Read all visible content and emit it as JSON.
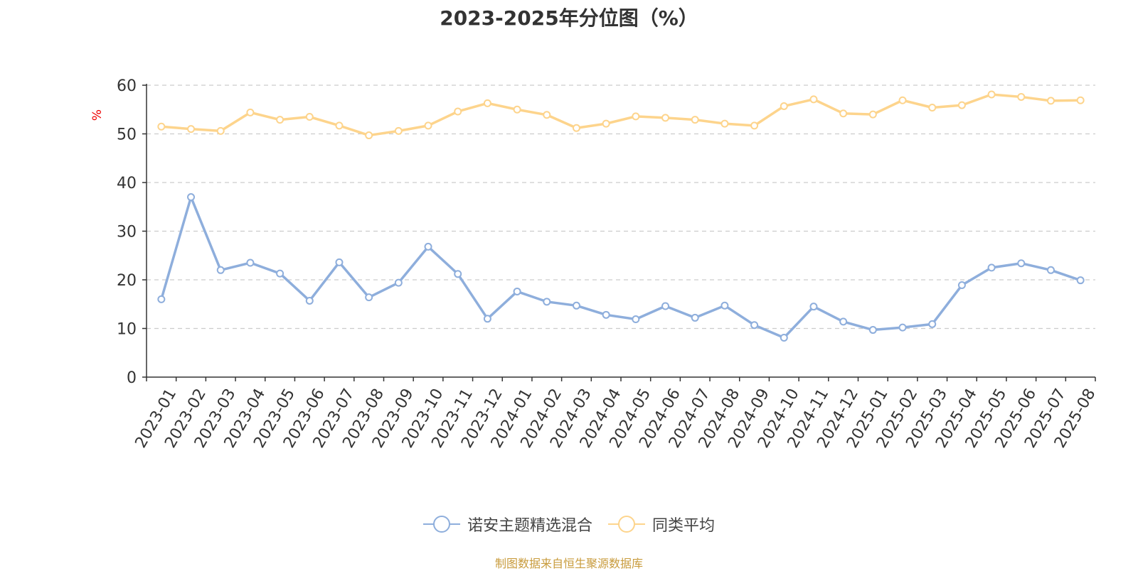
{
  "chart_data": {
    "type": "line",
    "title": "2023-2025年分位图（%）",
    "ylabel": "%",
    "xlabel": "",
    "ylim": [
      0,
      60
    ],
    "yticks": [
      0,
      10,
      20,
      30,
      40,
      50,
      60
    ],
    "grid": true,
    "legend_position": "bottom",
    "categories": [
      "2023-01",
      "2023-02",
      "2023-03",
      "2023-04",
      "2023-05",
      "2023-06",
      "2023-07",
      "2023-08",
      "2023-09",
      "2023-10",
      "2023-11",
      "2023-12",
      "2024-01",
      "2024-02",
      "2024-03",
      "2024-04",
      "2024-05",
      "2024-06",
      "2024-07",
      "2024-08",
      "2024-09",
      "2024-10",
      "2024-11",
      "2024-12",
      "2025-01",
      "2025-02",
      "2025-03",
      "2025-04",
      "2025-05",
      "2025-06",
      "2025-07",
      "2025-08"
    ],
    "series": [
      {
        "name": "诺安主题精选混合",
        "color": "#8eaedc",
        "values": [
          16,
          37,
          22,
          23.5,
          21.3,
          15.7,
          23.6,
          16.4,
          19.4,
          26.8,
          21.2,
          12,
          17.6,
          15.5,
          14.7,
          12.8,
          11.9,
          14.6,
          12.2,
          14.7,
          10.7,
          8.1,
          14.5,
          11.4,
          9.7,
          10.2,
          10.9,
          18.9,
          22.5,
          23.4,
          22,
          19.9
        ]
      },
      {
        "name": "同类平均",
        "color": "#fdd48c",
        "values": [
          51.5,
          51,
          50.6,
          54.4,
          52.9,
          53.5,
          51.7,
          49.7,
          50.6,
          51.7,
          54.6,
          56.3,
          55,
          53.9,
          51.2,
          52.1,
          53.6,
          53.3,
          52.9,
          52.1,
          51.7,
          55.7,
          57.1,
          54.2,
          54,
          56.9,
          55.4,
          55.9,
          58.1,
          57.6,
          56.8,
          56.9
        ]
      }
    ]
  },
  "source_note": "制图数据来自恒生聚源数据库",
  "colors": {
    "axis": "#333333",
    "grid": "#cccccc",
    "ylabel": "#ee0000",
    "source": "#c89b3c"
  }
}
